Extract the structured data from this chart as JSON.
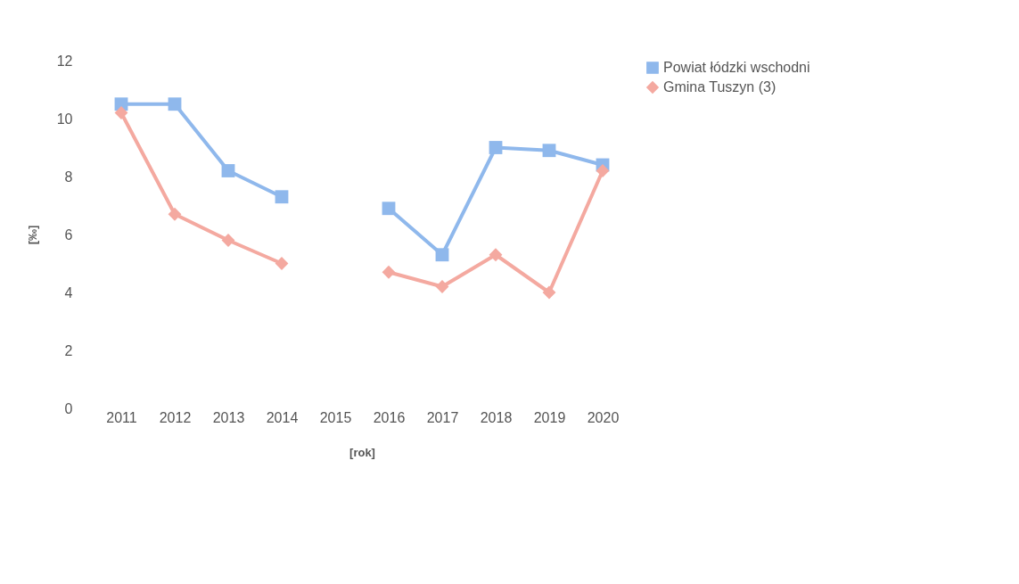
{
  "chart_data": {
    "type": "line",
    "xlabel": "[rok]",
    "ylabel": "[‰]",
    "categories": [
      "2011",
      "2012",
      "2013",
      "2014",
      "2015",
      "2016",
      "2017",
      "2018",
      "2019",
      "2020"
    ],
    "series": [
      {
        "name": "Powiat łódzki wschodni",
        "color": "#8fb8ec",
        "marker": "square",
        "values": [
          10.5,
          10.5,
          8.2,
          7.3,
          null,
          6.9,
          5.3,
          9.0,
          8.9,
          8.4
        ]
      },
      {
        "name": "Gmina Tuszyn (3)",
        "color": "#f4a9a0",
        "marker": "diamond",
        "values": [
          10.2,
          6.7,
          5.8,
          5.0,
          null,
          4.7,
          4.2,
          5.3,
          4.0,
          8.2
        ]
      }
    ],
    "ylim": [
      0,
      12
    ],
    "yticks": [
      0,
      2,
      4,
      6,
      8,
      10,
      12
    ],
    "grid": false,
    "legend": "right",
    "line_style": "solid"
  }
}
